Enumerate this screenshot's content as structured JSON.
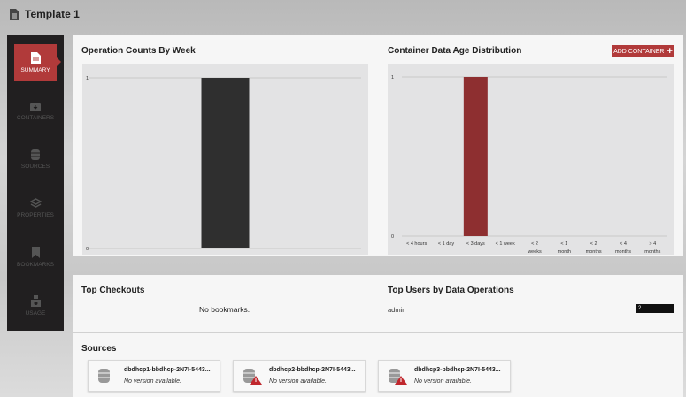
{
  "title": "Template 1",
  "sidebar": {
    "items": [
      {
        "label": "SUMMARY",
        "icon": "document-icon",
        "active": true
      },
      {
        "label": "CONTAINERS",
        "icon": "container-icon"
      },
      {
        "label": "SOURCES",
        "icon": "database-icon"
      },
      {
        "label": "PROPERTIES",
        "icon": "layers-icon"
      },
      {
        "label": "BOOKMARKS",
        "icon": "bookmark-icon"
      },
      {
        "label": "USAGE",
        "icon": "usage-icon"
      }
    ]
  },
  "colors": {
    "accent": "#b13a3a",
    "bar1": "#2f2f2f",
    "bar2": "#8e2f30"
  },
  "operation_counts": {
    "title": "Operation Counts By Week"
  },
  "container_age": {
    "title": "Container Data Age Distribution",
    "add_label": "ADD CONTAINER"
  },
  "chart_data": [
    {
      "type": "bar",
      "title": "Operation Counts By Week",
      "categories": [
        ""
      ],
      "values": [
        1
      ],
      "ylim": [
        0,
        1
      ],
      "yticks": [
        "0",
        "1"
      ],
      "grid": true
    },
    {
      "type": "bar",
      "title": "Container Data Age Distribution",
      "categories": [
        "< 4 hours",
        "< 1 day",
        "< 3 days",
        "< 1 week",
        "< 2 weeks",
        "< 1 month",
        "< 2 months",
        "< 4 months",
        "> 4 months"
      ],
      "values": [
        0,
        0,
        1,
        0,
        0,
        0,
        0,
        0,
        0
      ],
      "ylim": [
        0,
        1
      ],
      "yticks": [
        "0",
        "1"
      ],
      "grid": true
    }
  ],
  "top_checkouts": {
    "title": "Top Checkouts",
    "empty": "No bookmarks."
  },
  "top_users": {
    "title": "Top Users by Data Operations",
    "rows": [
      {
        "user": "admin",
        "count": "2"
      }
    ]
  },
  "sources": {
    "title": "Sources",
    "items": [
      {
        "name": "dbdhcp1-bbdhcp-2N7I-5443...",
        "version": "No version available.",
        "warning": false
      },
      {
        "name": "dbdhcp2-bbdhcp-2N7I-5443...",
        "version": "No version available.",
        "warning": true
      },
      {
        "name": "dbdhcp3-bbdhcp-2N7I-5443...",
        "version": "No version available.",
        "warning": true
      }
    ]
  }
}
